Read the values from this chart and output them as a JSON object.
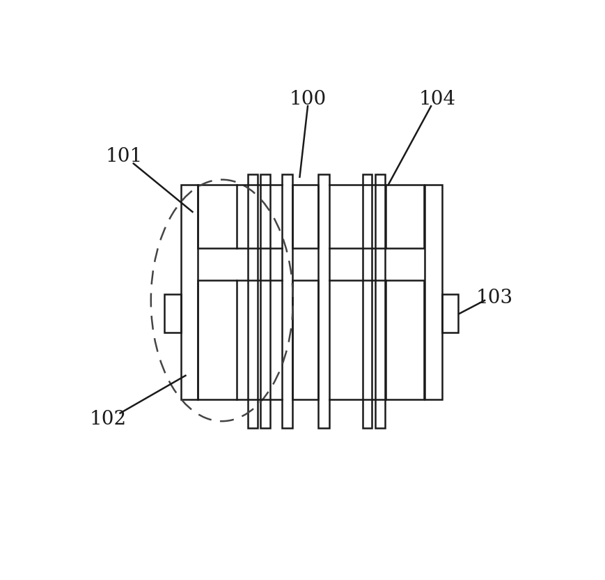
{
  "bg_color": "#ffffff",
  "line_color": "#1a1a1a",
  "dashed_color": "#444444",
  "lw": 1.8,
  "fig_w": 8.7,
  "fig_h": 8.32,
  "label_fontsize": 20
}
